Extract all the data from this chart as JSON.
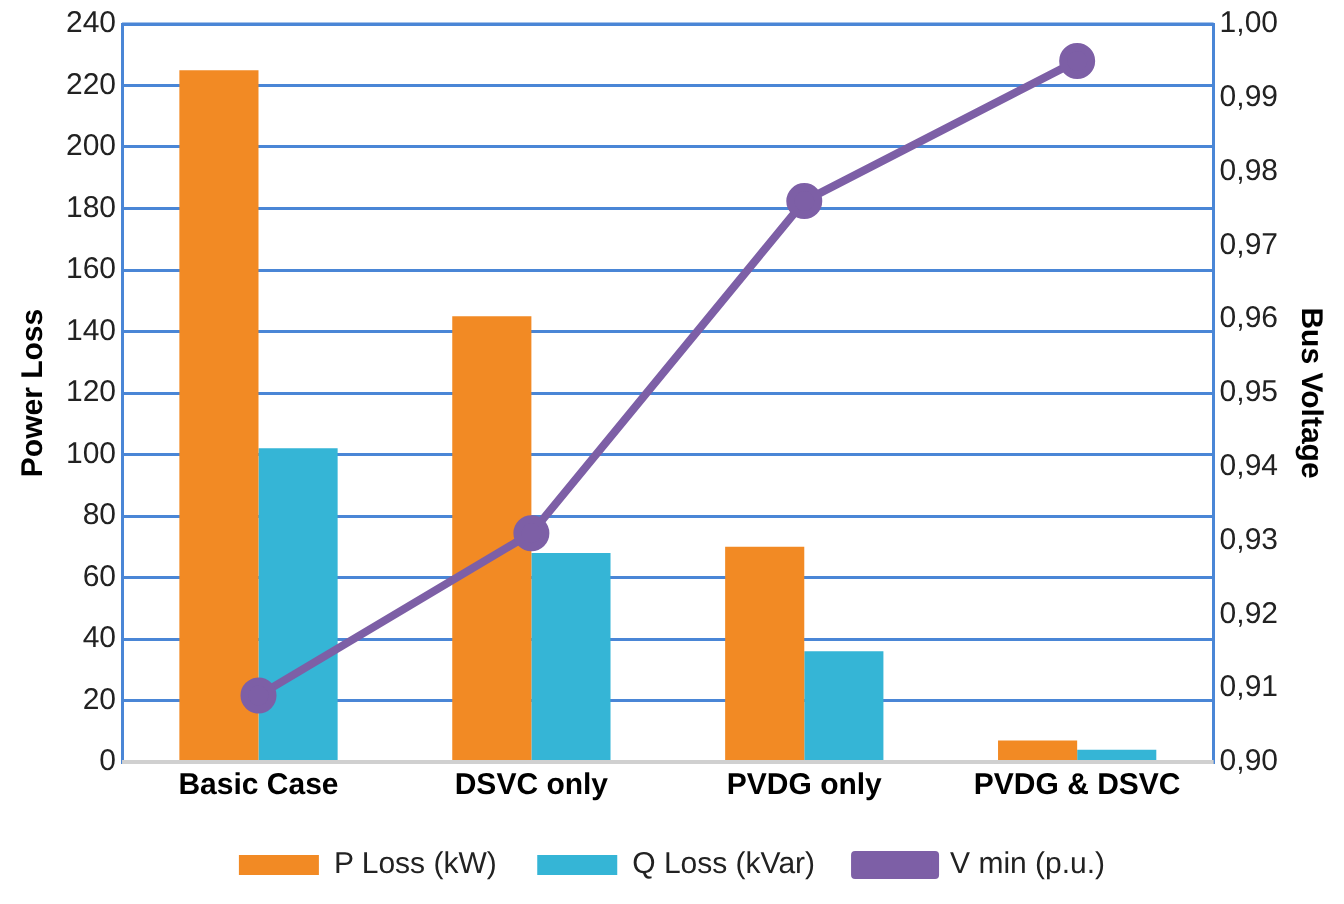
{
  "chart_data": {
    "type": "bar",
    "ylabel": "Power Loss",
    "y2label": "Bus Voltage",
    "categories": [
      "Basic Case",
      "DSVC only",
      "PVDG only",
      "PVDG & DSVC"
    ],
    "series": [
      {
        "name": "P Loss (kW)",
        "color": "#f28a24",
        "values": [
          225,
          145,
          70,
          7
        ]
      },
      {
        "name": "Q Loss (kVar)",
        "color": "#35b5d6",
        "values": [
          102,
          68,
          36,
          4
        ]
      },
      {
        "name": "V min (p.u.)",
        "type": "line",
        "axis": "y2",
        "color": "#7d5fa6",
        "values": [
          0.909,
          0.931,
          0.976,
          0.995
        ]
      }
    ],
    "ylim": [
      0,
      240
    ],
    "yticks": [
      0,
      20,
      40,
      60,
      80,
      100,
      120,
      140,
      160,
      180,
      200,
      220,
      240
    ],
    "y2lim": [
      0.9,
      1.0
    ],
    "y2ticks": [
      {
        "value": 0.9,
        "label": "0,90"
      },
      {
        "value": 0.91,
        "label": "0,91"
      },
      {
        "value": 0.92,
        "label": "0,92"
      },
      {
        "value": 0.93,
        "label": "0,93"
      },
      {
        "value": 0.94,
        "label": "0,94"
      },
      {
        "value": 0.95,
        "label": "0,95"
      },
      {
        "value": 0.96,
        "label": "0,96"
      },
      {
        "value": 0.97,
        "label": "0,97"
      },
      {
        "value": 0.98,
        "label": "0,98"
      },
      {
        "value": 0.99,
        "label": "0,99"
      },
      {
        "value": 1.0,
        "label": "1,00"
      }
    ],
    "grid": "y",
    "legend": "bottom",
    "marker": "circle",
    "line_style": "solid"
  }
}
